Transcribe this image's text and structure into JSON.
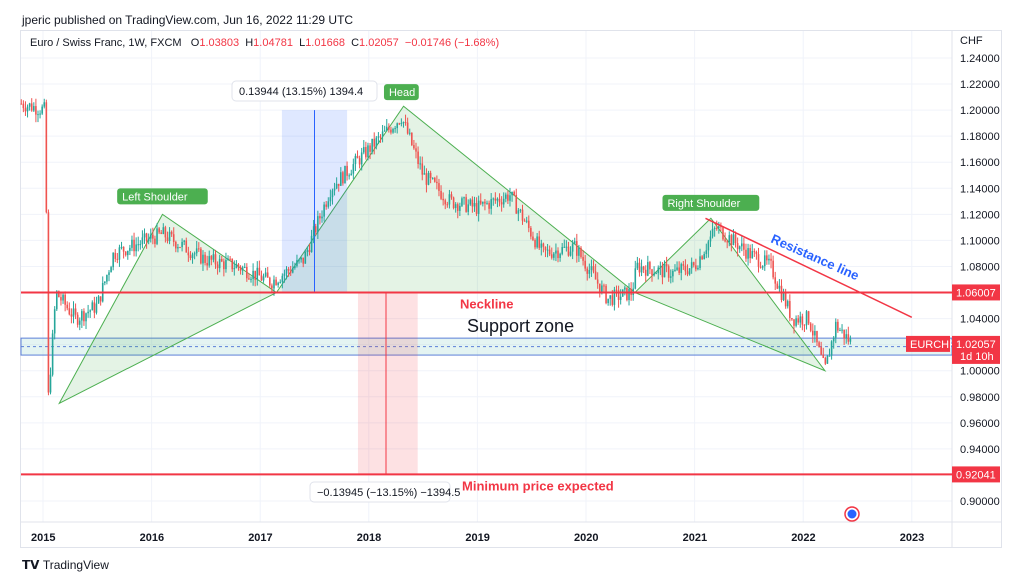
{
  "header": {
    "published": "jperic published on TradingView.com, Jun 16, 2022 11:29 UTC"
  },
  "legend": {
    "symbol": "Euro / Swiss Franc, 1W, FXCM",
    "o_label": "O",
    "o": "1.03803",
    "h_label": "H",
    "h": "1.04781",
    "l_label": "L",
    "l": "1.01668",
    "c_label": "C",
    "c": "1.02057",
    "change": "−0.01746 (−1.68%)"
  },
  "footer": {
    "brand": "TradingView"
  },
  "chart_data": {
    "type": "candlestick",
    "currency_label": "CHF",
    "ylim": [
      0.89,
      1.25
    ],
    "xlim": [
      2014.8,
      2023.35
    ],
    "y_ticks": [
      "1.24000",
      "1.22000",
      "1.20000",
      "1.18000",
      "1.16000",
      "1.14000",
      "1.12000",
      "1.10000",
      "1.08000",
      "1.06000",
      "1.04000",
      "1.02000",
      "1.00000",
      "0.98000",
      "0.96000",
      "0.94000",
      "0.92000",
      "0.90000"
    ],
    "x_ticks": [
      "2015",
      "2016",
      "2017",
      "2018",
      "2019",
      "2020",
      "2021",
      "2022",
      "2023"
    ],
    "price_path": [
      [
        2014.8,
        1.205
      ],
      [
        2015.02,
        1.2
      ],
      [
        2015.05,
        0.98
      ],
      [
        2015.12,
        1.06
      ],
      [
        2015.3,
        1.04
      ],
      [
        2015.5,
        1.05
      ],
      [
        2015.65,
        1.09
      ],
      [
        2016.1,
        1.105
      ],
      [
        2016.5,
        1.085
      ],
      [
        2016.8,
        1.08
      ],
      [
        2017.1,
        1.068
      ],
      [
        2017.4,
        1.085
      ],
      [
        2017.65,
        1.14
      ],
      [
        2018.0,
        1.17
      ],
      [
        2018.3,
        1.195
      ],
      [
        2018.5,
        1.15
      ],
      [
        2018.75,
        1.13
      ],
      [
        2019.0,
        1.125
      ],
      [
        2019.3,
        1.135
      ],
      [
        2019.6,
        1.09
      ],
      [
        2019.9,
        1.095
      ],
      [
        2020.2,
        1.055
      ],
      [
        2020.42,
        1.06
      ],
      [
        2020.47,
        1.08
      ],
      [
        2020.8,
        1.075
      ],
      [
        2021.0,
        1.08
      ],
      [
        2021.2,
        1.11
      ],
      [
        2021.5,
        1.09
      ],
      [
        2021.7,
        1.08
      ],
      [
        2021.9,
        1.04
      ],
      [
        2022.05,
        1.04
      ],
      [
        2022.2,
        1.0
      ],
      [
        2022.3,
        1.035
      ],
      [
        2022.45,
        1.0206
      ]
    ],
    "last_price": {
      "symbol": "EURCHF",
      "value": "1.02057",
      "countdown": "1d 10h"
    },
    "levels": [
      {
        "name": "Neckline",
        "price": 1.06007,
        "label": "1.06007"
      },
      {
        "name": "Minimum price expected",
        "price": 0.92041,
        "label": "0.92041"
      }
    ],
    "support_zone": {
      "label": "Support zone",
      "from": 1.012,
      "to": 1.025
    },
    "pattern_labels": [
      {
        "text": "Left Shoulder",
        "x": 2016.1,
        "y": 1.12
      },
      {
        "text": "Head",
        "x": 2018.3,
        "y": 1.2
      },
      {
        "text": "Right Shoulder",
        "x": 2021.15,
        "y": 1.115
      }
    ],
    "triangles": [
      [
        [
          2015.15,
          0.975
        ],
        [
          2016.1,
          1.12
        ],
        [
          2017.15,
          1.06
        ]
      ],
      [
        [
          2017.15,
          1.06
        ],
        [
          2018.32,
          1.203
        ],
        [
          2020.45,
          1.06
        ]
      ],
      [
        [
          2020.45,
          1.06
        ],
        [
          2021.15,
          1.117
        ],
        [
          2022.2,
          1.0
        ]
      ]
    ],
    "resistance": {
      "label": "Resistance line",
      "from": [
        2021.1,
        1.117
      ],
      "to": [
        2023.0,
        1.041
      ]
    },
    "measure_up": {
      "label": "0.13944 (13.15%) 1394.4",
      "x0": 2017.2,
      "x1": 2017.8,
      "p0": 1.06,
      "p1": 1.2
    },
    "measure_down": {
      "label": "−0.13945 (−13.15%) −1394.5",
      "x0": 2017.9,
      "x1": 2018.45,
      "p0": 1.06,
      "p1": 0.92
    }
  }
}
